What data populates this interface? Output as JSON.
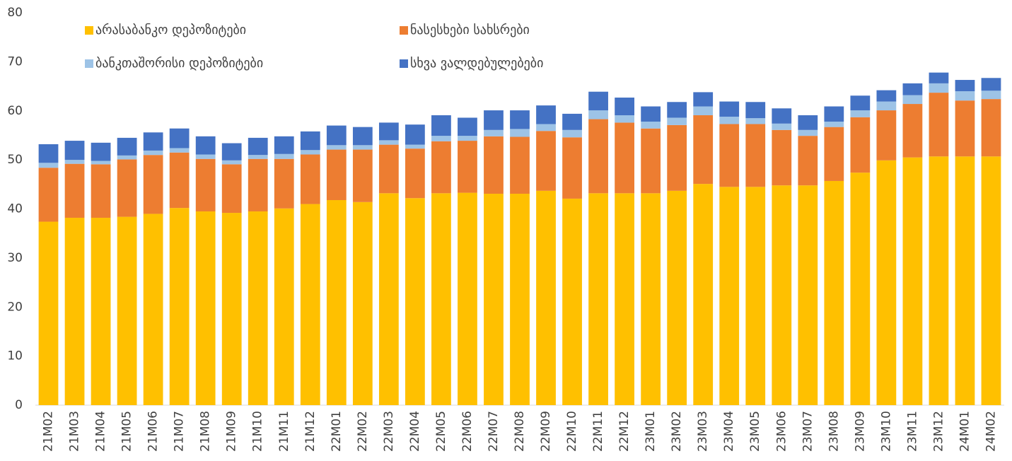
{
  "chart_data": {
    "type": "stacked_bar",
    "categories": [
      "21M02",
      "21M03",
      "21M04",
      "21M05",
      "21M06",
      "21M07",
      "21M08",
      "21M09",
      "21M10",
      "21M11",
      "21M12",
      "22M01",
      "22M02",
      "22M03",
      "22M04",
      "22M05",
      "22M06",
      "22M07",
      "22M08",
      "22M09",
      "22M10",
      "22M11",
      "22M12",
      "23M01",
      "23M02",
      "23M03",
      "23M04",
      "23M05",
      "23M06",
      "23M07",
      "23M08",
      "23M09",
      "23M10",
      "23M11",
      "23M12",
      "24M01",
      "24M02"
    ],
    "series": [
      {
        "name": "არასაბანკო დეპოზიტები",
        "color": "#FFC000",
        "values": [
          37.4,
          38.2,
          38.2,
          38.4,
          39.0,
          40.2,
          39.5,
          39.2,
          39.5,
          40.1,
          41.0,
          41.8,
          41.4,
          43.2,
          42.2,
          43.2,
          43.3,
          43.1,
          43.1,
          43.7,
          42.1,
          43.2,
          43.2,
          43.2,
          43.7,
          45.1,
          44.5,
          44.5,
          44.8,
          44.8,
          45.7,
          47.4,
          49.9,
          50.5,
          50.7,
          50.7,
          50.7
        ]
      },
      {
        "name": "ნასესხები სახსრები",
        "color": "#ED7D31",
        "values": [
          11.0,
          11.0,
          10.9,
          11.7,
          12.0,
          11.3,
          10.7,
          9.9,
          10.7,
          10.1,
          10.1,
          10.3,
          10.7,
          9.9,
          10.1,
          10.6,
          10.6,
          11.7,
          11.6,
          12.2,
          12.5,
          15.1,
          14.4,
          13.2,
          13.4,
          14.0,
          12.8,
          12.8,
          11.3,
          10.1,
          11.0,
          11.3,
          10.2,
          10.9,
          13.0,
          11.4,
          11.7
        ]
      },
      {
        "name": "ბანკთაშორისი დეპოზიტები",
        "color": "#9DC3E6",
        "values": [
          1.0,
          0.8,
          0.7,
          0.8,
          0.9,
          0.9,
          0.9,
          0.8,
          0.8,
          1.0,
          0.9,
          0.9,
          0.9,
          0.9,
          0.8,
          1.1,
          1.0,
          1.3,
          1.6,
          1.4,
          1.5,
          1.8,
          1.5,
          1.4,
          1.5,
          1.8,
          1.5,
          1.2,
          1.3,
          1.2,
          1.1,
          1.4,
          1.8,
          1.8,
          1.9,
          1.9,
          1.7
        ]
      },
      {
        "name": "სხვა ვალდებულებები",
        "color": "#4472C4",
        "values": [
          3.8,
          3.9,
          3.7,
          3.6,
          3.7,
          4.0,
          3.7,
          3.5,
          3.5,
          3.6,
          3.8,
          4.0,
          3.7,
          3.6,
          4.1,
          4.2,
          3.7,
          4.0,
          3.8,
          3.8,
          3.3,
          3.8,
          3.6,
          3.1,
          3.2,
          2.9,
          3.1,
          3.3,
          3.1,
          3.0,
          3.1,
          3.0,
          2.3,
          2.4,
          2.2,
          2.3,
          2.6
        ]
      }
    ],
    "ylim": [
      0,
      80
    ],
    "yticks": [
      0,
      10,
      20,
      30,
      40,
      50,
      60,
      70,
      80
    ],
    "grid": false
  }
}
